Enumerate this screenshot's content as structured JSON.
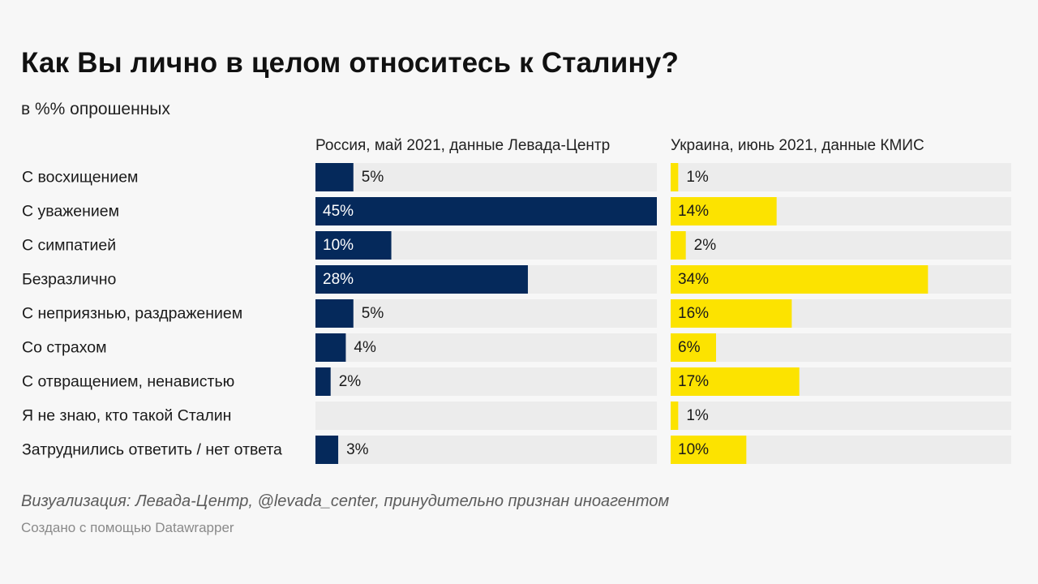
{
  "header": {
    "title": "Как Вы лично в целом относитесь к Сталину?",
    "subtitle": "в %% опрошенных"
  },
  "chart_data": {
    "type": "bar",
    "orientation": "horizontal",
    "title": "Как Вы лично в целом относитесь к Сталину?",
    "subtitle": "в %% опрошенных",
    "xlim": [
      0,
      45
    ],
    "grid": false,
    "categories": [
      "С восхищением",
      "С уважением",
      "С симпатией",
      "Безразлично",
      "С неприязнью, раздражением",
      "Со страхом",
      "С отвращением, ненавистью",
      "Я не знаю, кто такой Сталин",
      "Затруднились ответить / нет ответа"
    ],
    "series": [
      {
        "name": "Россия, май 2021, данные Левада-Центр",
        "color": "#05295b",
        "values": [
          5,
          45,
          10,
          28,
          5,
          4,
          2,
          null,
          3
        ],
        "labels": [
          "5%",
          "45%",
          "10%",
          "28%",
          "5%",
          "4%",
          "2%",
          "",
          "3%"
        ]
      },
      {
        "name": "Украина, июнь 2021, данные КМИС",
        "color": "#fce300",
        "values": [
          1,
          14,
          2,
          34,
          16,
          6,
          17,
          1,
          10
        ],
        "labels": [
          "1%",
          "14%",
          "2%",
          "34%",
          "16%",
          "6%",
          "17%",
          "1%",
          "10%"
        ]
      }
    ],
    "track_color": "#ececec"
  },
  "footer": {
    "caption": "Визуализация: Левада-Центр, @levada_center, принудительно признан иноагентом",
    "credit": "Создано с помощью Datawrapper"
  }
}
